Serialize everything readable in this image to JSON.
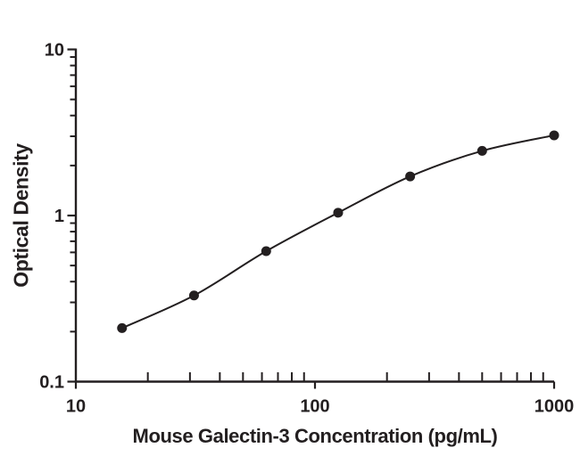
{
  "chart_data": {
    "type": "line",
    "title": "",
    "xlabel": "Mouse Galectin-3 Concentration (pg/mL)",
    "ylabel": "Optical Density",
    "x_scale": "log",
    "y_scale": "log",
    "xlim": [
      10,
      1000
    ],
    "ylim": [
      0.1,
      10
    ],
    "x_tick_values": [
      10,
      100,
      1000
    ],
    "x_tick_labels": [
      "10",
      "100",
      "1000"
    ],
    "y_tick_values": [
      0.1,
      1,
      10
    ],
    "y_tick_labels": [
      "0.1",
      "1",
      "10"
    ],
    "grid": false,
    "legend": false,
    "marker": "filled-circle",
    "series": [
      {
        "x": [
          15.6,
          31.2,
          62.5,
          125,
          250,
          500,
          1000
        ],
        "y": [
          0.21,
          0.33,
          0.61,
          1.04,
          1.72,
          2.45,
          3.04
        ]
      }
    ],
    "colors": {
      "line": "#231f20",
      "marker": "#231f20",
      "axis": "#231f20",
      "background": "#ffffff"
    }
  }
}
